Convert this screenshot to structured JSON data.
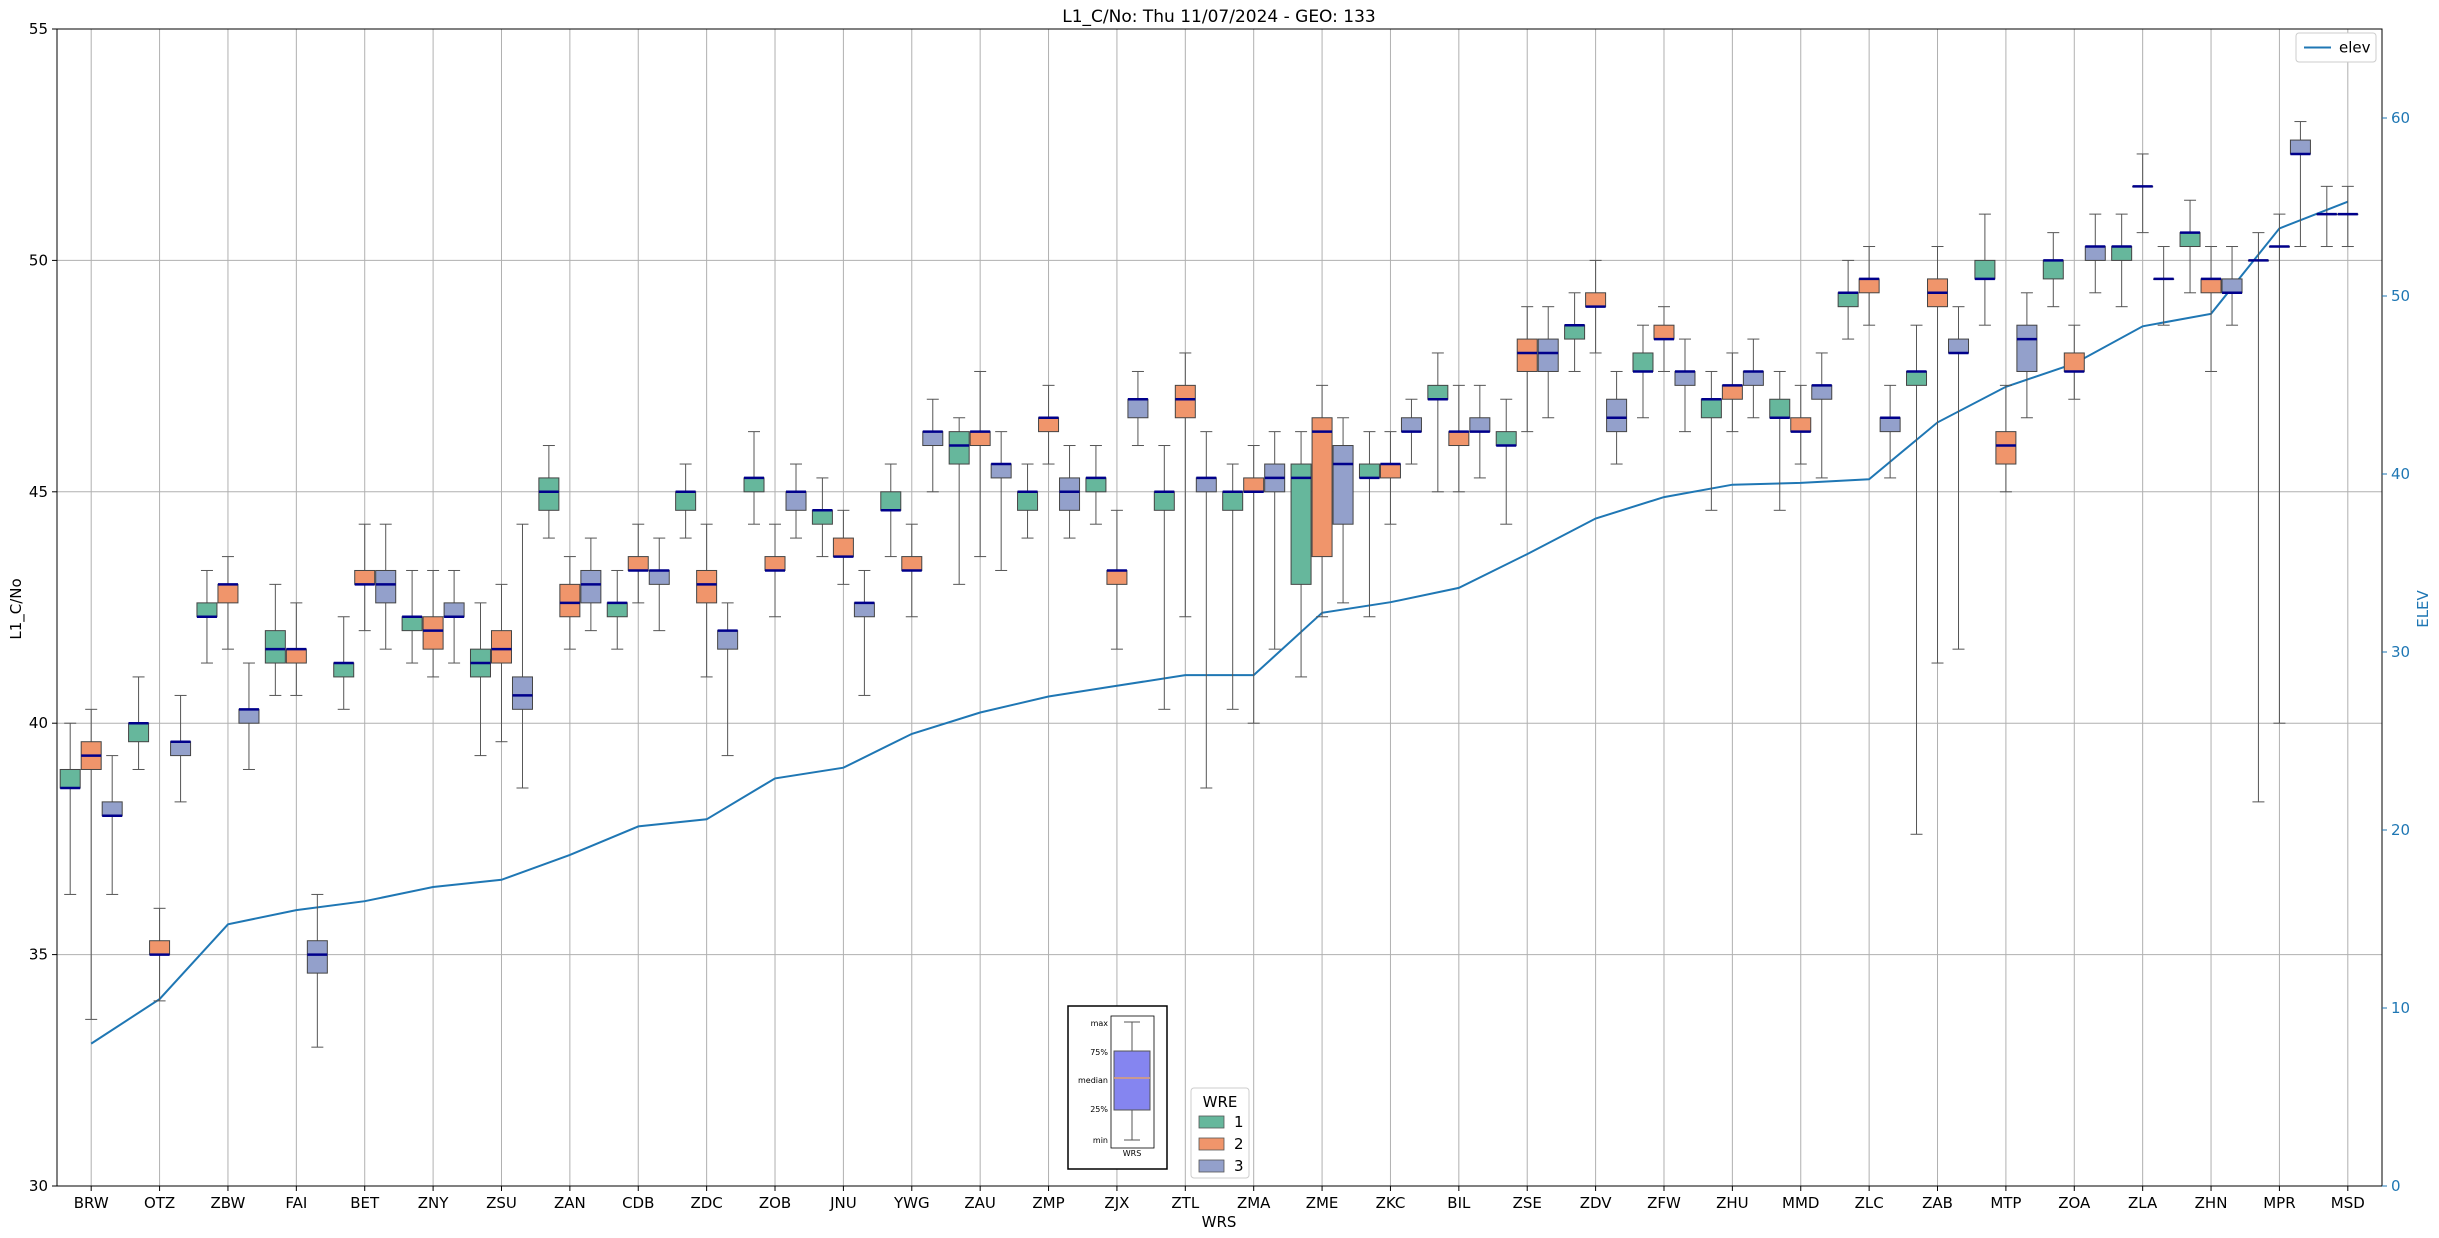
{
  "chart_data": {
    "type": "box+line",
    "title": "L1_C/No: Thu 11/07/2024 - GEO: 133",
    "xlabel": "WRS",
    "ylabel": "L1_C/No",
    "y2label": "ELEV",
    "ylim": [
      30,
      55
    ],
    "y2lim": [
      0,
      65
    ],
    "yticks": [
      30,
      35,
      40,
      45,
      50,
      55
    ],
    "y2ticks": [
      0,
      10,
      20,
      30,
      40,
      50,
      60
    ],
    "grid": true,
    "categories": [
      "BRW",
      "OTZ",
      "ZBW",
      "FAI",
      "BET",
      "ZNY",
      "ZSU",
      "ZAN",
      "CDB",
      "ZDC",
      "ZOB",
      "JNU",
      "YWG",
      "ZAU",
      "ZMP",
      "ZJX",
      "ZTL",
      "ZMA",
      "ZME",
      "ZKC",
      "BIL",
      "ZSE",
      "ZDV",
      "ZFW",
      "ZHU",
      "MMD",
      "ZLC",
      "ZAB",
      "MTP",
      "ZOA",
      "ZLA",
      "ZHN",
      "MPR",
      "MSD"
    ],
    "wre_legend": {
      "title": "WRE",
      "entries": [
        {
          "label": "1",
          "color": "#66b79c"
        },
        {
          "label": "2",
          "color": "#f0956b"
        },
        {
          "label": "3",
          "color": "#93a0cb"
        }
      ],
      "placement": "bottom-center"
    },
    "line_legend": {
      "label": "elev",
      "color": "#1f77b4",
      "placement": "top-right"
    },
    "median_color": "#00008b",
    "elev": [
      8,
      10.5,
      14.7,
      15.5,
      16,
      16.8,
      17.2,
      18.6,
      20.2,
      20.6,
      22.9,
      23.5,
      25.4,
      26.6,
      27.5,
      28.1,
      28.7,
      28.7,
      32.2,
      32.8,
      33.6,
      35.5,
      37.5,
      38.7,
      39.4,
      39.5,
      39.7,
      42.9,
      44.9,
      46.2,
      48.3,
      49,
      53.8,
      55.3
    ],
    "boxes": [
      {
        "cat": "BRW",
        "wre": 1,
        "min": 36.3,
        "q1": 38.6,
        "median": 38.6,
        "q3": 39.0,
        "max": 40.0
      },
      {
        "cat": "BRW",
        "wre": 2,
        "min": 33.6,
        "q1": 39.0,
        "median": 39.3,
        "q3": 39.6,
        "max": 40.3
      },
      {
        "cat": "BRW",
        "wre": 3,
        "min": 36.3,
        "q1": 38.0,
        "median": 38.0,
        "q3": 38.3,
        "max": 39.3
      },
      {
        "cat": "OTZ",
        "wre": 1,
        "min": 39.0,
        "q1": 39.6,
        "median": 40.0,
        "q3": 40.0,
        "max": 41.0
      },
      {
        "cat": "OTZ",
        "wre": 2,
        "min": 34.0,
        "q1": 35.0,
        "median": 35.0,
        "q3": 35.3,
        "max": 36.0
      },
      {
        "cat": "OTZ",
        "wre": 3,
        "min": 38.3,
        "q1": 39.3,
        "median": 39.6,
        "q3": 39.6,
        "max": 40.6
      },
      {
        "cat": "ZBW",
        "wre": 1,
        "min": 41.3,
        "q1": 42.3,
        "median": 42.3,
        "q3": 42.6,
        "max": 43.3
      },
      {
        "cat": "ZBW",
        "wre": 2,
        "min": 41.6,
        "q1": 42.6,
        "median": 43.0,
        "q3": 43.0,
        "max": 43.6
      },
      {
        "cat": "ZBW",
        "wre": 3,
        "min": 39.0,
        "q1": 40.0,
        "median": 40.3,
        "q3": 40.3,
        "max": 41.3
      },
      {
        "cat": "FAI",
        "wre": 1,
        "min": 40.6,
        "q1": 41.3,
        "median": 41.6,
        "q3": 42.0,
        "max": 43.0
      },
      {
        "cat": "FAI",
        "wre": 2,
        "min": 40.6,
        "q1": 41.3,
        "median": 41.6,
        "q3": 41.6,
        "max": 42.6
      },
      {
        "cat": "FAI",
        "wre": 3,
        "min": 33.0,
        "q1": 34.6,
        "median": 35.0,
        "q3": 35.3,
        "max": 36.3
      },
      {
        "cat": "BET",
        "wre": 1,
        "min": 40.3,
        "q1": 41.0,
        "median": 41.3,
        "q3": 41.3,
        "max": 42.3
      },
      {
        "cat": "BET",
        "wre": 2,
        "min": 42.0,
        "q1": 43.0,
        "median": 43.0,
        "q3": 43.3,
        "max": 44.3
      },
      {
        "cat": "BET",
        "wre": 3,
        "min": 41.6,
        "q1": 42.6,
        "median": 43.0,
        "q3": 43.3,
        "max": 44.3
      },
      {
        "cat": "ZNY",
        "wre": 1,
        "min": 41.3,
        "q1": 42.0,
        "median": 42.3,
        "q3": 42.3,
        "max": 43.3
      },
      {
        "cat": "ZNY",
        "wre": 2,
        "min": 41.0,
        "q1": 41.6,
        "median": 42.0,
        "q3": 42.3,
        "max": 43.3
      },
      {
        "cat": "ZNY",
        "wre": 3,
        "min": 41.3,
        "q1": 42.3,
        "median": 42.3,
        "q3": 42.6,
        "max": 43.3
      },
      {
        "cat": "ZSU",
        "wre": 1,
        "min": 39.3,
        "q1": 41.0,
        "median": 41.3,
        "q3": 41.6,
        "max": 42.6
      },
      {
        "cat": "ZSU",
        "wre": 2,
        "min": 39.6,
        "q1": 41.3,
        "median": 41.6,
        "q3": 42.0,
        "max": 43.0
      },
      {
        "cat": "ZSU",
        "wre": 3,
        "min": 38.6,
        "q1": 40.3,
        "median": 40.6,
        "q3": 41.0,
        "max": 44.3
      },
      {
        "cat": "ZAN",
        "wre": 1,
        "min": 44.0,
        "q1": 44.6,
        "median": 45.0,
        "q3": 45.3,
        "max": 46.0
      },
      {
        "cat": "ZAN",
        "wre": 2,
        "min": 41.6,
        "q1": 42.3,
        "median": 42.6,
        "q3": 43.0,
        "max": 43.6
      },
      {
        "cat": "ZAN",
        "wre": 3,
        "min": 42.0,
        "q1": 42.6,
        "median": 43.0,
        "q3": 43.3,
        "max": 44.0
      },
      {
        "cat": "CDB",
        "wre": 1,
        "min": 41.6,
        "q1": 42.3,
        "median": 42.6,
        "q3": 42.6,
        "max": 43.3
      },
      {
        "cat": "CDB",
        "wre": 2,
        "min": 42.6,
        "q1": 43.3,
        "median": 43.3,
        "q3": 43.6,
        "max": 44.3
      },
      {
        "cat": "CDB",
        "wre": 3,
        "min": 42.0,
        "q1": 43.0,
        "median": 43.3,
        "q3": 43.3,
        "max": 44.0
      },
      {
        "cat": "ZDC",
        "wre": 1,
        "min": 44.0,
        "q1": 44.6,
        "median": 45.0,
        "q3": 45.0,
        "max": 45.6
      },
      {
        "cat": "ZDC",
        "wre": 2,
        "min": 41.0,
        "q1": 42.6,
        "median": 43.0,
        "q3": 43.3,
        "max": 44.3
      },
      {
        "cat": "ZDC",
        "wre": 3,
        "min": 39.3,
        "q1": 41.6,
        "median": 42.0,
        "q3": 42.0,
        "max": 42.6
      },
      {
        "cat": "ZOB",
        "wre": 1,
        "min": 44.3,
        "q1": 45.0,
        "median": 45.3,
        "q3": 45.3,
        "max": 46.3
      },
      {
        "cat": "ZOB",
        "wre": 2,
        "min": 42.3,
        "q1": 43.3,
        "median": 43.3,
        "q3": 43.6,
        "max": 44.3
      },
      {
        "cat": "ZOB",
        "wre": 3,
        "min": 44.0,
        "q1": 44.6,
        "median": 45.0,
        "q3": 45.0,
        "max": 45.6
      },
      {
        "cat": "JNU",
        "wre": 1,
        "min": 43.6,
        "q1": 44.3,
        "median": 44.6,
        "q3": 44.6,
        "max": 45.3
      },
      {
        "cat": "JNU",
        "wre": 2,
        "min": 43.0,
        "q1": 43.6,
        "median": 43.6,
        "q3": 44.0,
        "max": 44.6
      },
      {
        "cat": "JNU",
        "wre": 3,
        "min": 40.6,
        "q1": 42.3,
        "median": 42.6,
        "q3": 42.6,
        "max": 43.3
      },
      {
        "cat": "YWG",
        "wre": 1,
        "min": 43.6,
        "q1": 44.6,
        "median": 44.6,
        "q3": 45.0,
        "max": 45.6
      },
      {
        "cat": "YWG",
        "wre": 2,
        "min": 42.3,
        "q1": 43.3,
        "median": 43.3,
        "q3": 43.6,
        "max": 44.3
      },
      {
        "cat": "YWG",
        "wre": 3,
        "min": 45.0,
        "q1": 46.0,
        "median": 46.3,
        "q3": 46.3,
        "max": 47.0
      },
      {
        "cat": "ZAU",
        "wre": 1,
        "min": 43.0,
        "q1": 45.6,
        "median": 46.0,
        "q3": 46.3,
        "max": 46.6
      },
      {
        "cat": "ZAU",
        "wre": 2,
        "min": 43.6,
        "q1": 46.0,
        "median": 46.3,
        "q3": 46.3,
        "max": 47.6
      },
      {
        "cat": "ZAU",
        "wre": 3,
        "min": 43.3,
        "q1": 45.3,
        "median": 45.6,
        "q3": 45.6,
        "max": 46.3
      },
      {
        "cat": "ZMP",
        "wre": 1,
        "min": 44.0,
        "q1": 44.6,
        "median": 45.0,
        "q3": 45.0,
        "max": 45.6
      },
      {
        "cat": "ZMP",
        "wre": 2,
        "min": 45.6,
        "q1": 46.3,
        "median": 46.6,
        "q3": 46.6,
        "max": 47.3
      },
      {
        "cat": "ZMP",
        "wre": 3,
        "min": 44.0,
        "q1": 44.6,
        "median": 45.0,
        "q3": 45.3,
        "max": 46.0
      },
      {
        "cat": "ZJX",
        "wre": 1,
        "min": 44.3,
        "q1": 45.0,
        "median": 45.3,
        "q3": 45.3,
        "max": 46.0
      },
      {
        "cat": "ZJX",
        "wre": 2,
        "min": 41.6,
        "q1": 43.0,
        "median": 43.3,
        "q3": 43.3,
        "max": 44.6
      },
      {
        "cat": "ZJX",
        "wre": 3,
        "min": 46.0,
        "q1": 46.6,
        "median": 47.0,
        "q3": 47.0,
        "max": 47.6
      },
      {
        "cat": "ZTL",
        "wre": 1,
        "min": 40.3,
        "q1": 44.6,
        "median": 45.0,
        "q3": 45.0,
        "max": 46.0
      },
      {
        "cat": "ZTL",
        "wre": 2,
        "min": 42.3,
        "q1": 46.6,
        "median": 47.0,
        "q3": 47.3,
        "max": 48.0
      },
      {
        "cat": "ZTL",
        "wre": 3,
        "min": 38.6,
        "q1": 45.0,
        "median": 45.3,
        "q3": 45.3,
        "max": 46.3
      },
      {
        "cat": "ZMA",
        "wre": 1,
        "min": 40.3,
        "q1": 44.6,
        "median": 45.0,
        "q3": 45.0,
        "max": 45.6
      },
      {
        "cat": "ZMA",
        "wre": 2,
        "min": 40.0,
        "q1": 45.0,
        "median": 45.0,
        "q3": 45.3,
        "max": 46.0
      },
      {
        "cat": "ZMA",
        "wre": 3,
        "min": 41.6,
        "q1": 45.0,
        "median": 45.3,
        "q3": 45.6,
        "max": 46.3
      },
      {
        "cat": "ZME",
        "wre": 1,
        "min": 41.0,
        "q1": 43.0,
        "median": 45.3,
        "q3": 45.6,
        "max": 46.3
      },
      {
        "cat": "ZME",
        "wre": 2,
        "min": 42.3,
        "q1": 43.6,
        "median": 46.3,
        "q3": 46.6,
        "max": 47.3
      },
      {
        "cat": "ZME",
        "wre": 3,
        "min": 42.6,
        "q1": 44.3,
        "median": 45.6,
        "q3": 46.0,
        "max": 46.6
      },
      {
        "cat": "ZKC",
        "wre": 1,
        "min": 42.3,
        "q1": 45.3,
        "median": 45.3,
        "q3": 45.6,
        "max": 46.3
      },
      {
        "cat": "ZKC",
        "wre": 2,
        "min": 44.3,
        "q1": 45.3,
        "median": 45.6,
        "q3": 45.6,
        "max": 46.3
      },
      {
        "cat": "ZKC",
        "wre": 3,
        "min": 45.6,
        "q1": 46.3,
        "median": 46.3,
        "q3": 46.6,
        "max": 47.0
      },
      {
        "cat": "BIL",
        "wre": 1,
        "min": 45.0,
        "q1": 47.0,
        "median": 47.0,
        "q3": 47.3,
        "max": 48.0
      },
      {
        "cat": "BIL",
        "wre": 2,
        "min": 45.0,
        "q1": 46.0,
        "median": 46.3,
        "q3": 46.3,
        "max": 47.3
      },
      {
        "cat": "BIL",
        "wre": 3,
        "min": 45.3,
        "q1": 46.3,
        "median": 46.3,
        "q3": 46.6,
        "max": 47.3
      },
      {
        "cat": "ZSE",
        "wre": 1,
        "min": 44.3,
        "q1": 46.0,
        "median": 46.0,
        "q3": 46.3,
        "max": 47.0
      },
      {
        "cat": "ZSE",
        "wre": 2,
        "min": 46.3,
        "q1": 47.6,
        "median": 48.0,
        "q3": 48.3,
        "max": 49.0
      },
      {
        "cat": "ZSE",
        "wre": 3,
        "min": 46.6,
        "q1": 47.6,
        "median": 48.0,
        "q3": 48.3,
        "max": 49.0
      },
      {
        "cat": "ZDV",
        "wre": 1,
        "min": 47.6,
        "q1": 48.3,
        "median": 48.6,
        "q3": 48.6,
        "max": 49.3
      },
      {
        "cat": "ZDV",
        "wre": 2,
        "min": 48.0,
        "q1": 49.0,
        "median": 49.0,
        "q3": 49.3,
        "max": 50.0
      },
      {
        "cat": "ZDV",
        "wre": 3,
        "min": 45.6,
        "q1": 46.3,
        "median": 46.6,
        "q3": 47.0,
        "max": 47.6
      },
      {
        "cat": "ZFW",
        "wre": 1,
        "min": 46.6,
        "q1": 47.6,
        "median": 47.6,
        "q3": 48.0,
        "max": 48.6
      },
      {
        "cat": "ZFW",
        "wre": 2,
        "min": 47.6,
        "q1": 48.3,
        "median": 48.3,
        "q3": 48.6,
        "max": 49.0
      },
      {
        "cat": "ZFW",
        "wre": 3,
        "min": 46.3,
        "q1": 47.3,
        "median": 47.6,
        "q3": 47.6,
        "max": 48.3
      },
      {
        "cat": "ZHU",
        "wre": 1,
        "min": 44.6,
        "q1": 46.6,
        "median": 47.0,
        "q3": 47.0,
        "max": 47.6
      },
      {
        "cat": "ZHU",
        "wre": 2,
        "min": 46.3,
        "q1": 47.0,
        "median": 47.3,
        "q3": 47.3,
        "max": 48.0
      },
      {
        "cat": "ZHU",
        "wre": 3,
        "min": 46.6,
        "q1": 47.3,
        "median": 47.6,
        "q3": 47.6,
        "max": 48.3
      },
      {
        "cat": "MMD",
        "wre": 1,
        "min": 44.6,
        "q1": 46.6,
        "median": 46.6,
        "q3": 47.0,
        "max": 47.6
      },
      {
        "cat": "MMD",
        "wre": 2,
        "min": 45.6,
        "q1": 46.3,
        "median": 46.3,
        "q3": 46.6,
        "max": 47.3
      },
      {
        "cat": "MMD",
        "wre": 3,
        "min": 45.3,
        "q1": 47.0,
        "median": 47.3,
        "q3": 47.3,
        "max": 48.0
      },
      {
        "cat": "ZLC",
        "wre": 1,
        "min": 48.3,
        "q1": 49.0,
        "median": 49.3,
        "q3": 49.3,
        "max": 50.0
      },
      {
        "cat": "ZLC",
        "wre": 2,
        "min": 48.6,
        "q1": 49.3,
        "median": 49.6,
        "q3": 49.6,
        "max": 50.3
      },
      {
        "cat": "ZLC",
        "wre": 3,
        "min": 45.3,
        "q1": 46.3,
        "median": 46.6,
        "q3": 46.6,
        "max": 47.3
      },
      {
        "cat": "ZAB",
        "wre": 1,
        "min": 37.6,
        "q1": 47.3,
        "median": 47.6,
        "q3": 47.6,
        "max": 48.6
      },
      {
        "cat": "ZAB",
        "wre": 2,
        "min": 41.3,
        "q1": 49.0,
        "median": 49.3,
        "q3": 49.6,
        "max": 50.3
      },
      {
        "cat": "ZAB",
        "wre": 3,
        "min": 41.6,
        "q1": 48.0,
        "median": 48.0,
        "q3": 48.3,
        "max": 49.0
      },
      {
        "cat": "MTP",
        "wre": 1,
        "min": 48.6,
        "q1": 49.6,
        "median": 49.6,
        "q3": 50.0,
        "max": 51.0
      },
      {
        "cat": "MTP",
        "wre": 2,
        "min": 45.0,
        "q1": 45.6,
        "median": 46.0,
        "q3": 46.3,
        "max": 47.3
      },
      {
        "cat": "MTP",
        "wre": 3,
        "min": 46.6,
        "q1": 47.6,
        "median": 48.3,
        "q3": 48.6,
        "max": 49.3
      },
      {
        "cat": "ZOA",
        "wre": 1,
        "min": 49.0,
        "q1": 49.6,
        "median": 50.0,
        "q3": 50.0,
        "max": 50.6
      },
      {
        "cat": "ZOA",
        "wre": 2,
        "min": 47.0,
        "q1": 47.6,
        "median": 47.6,
        "q3": 48.0,
        "max": 48.6
      },
      {
        "cat": "ZOA",
        "wre": 3,
        "min": 49.3,
        "q1": 50.0,
        "median": 50.3,
        "q3": 50.3,
        "max": 51.0
      },
      {
        "cat": "ZLA",
        "wre": 1,
        "min": 49.0,
        "q1": 50.0,
        "median": 50.3,
        "q3": 50.3,
        "max": 51.0
      },
      {
        "cat": "ZLA",
        "wre": 2,
        "min": 50.6,
        "q1": 51.6,
        "median": 51.6,
        "q3": 51.6,
        "max": 52.3
      },
      {
        "cat": "ZLA",
        "wre": 3,
        "min": 48.6,
        "q1": 49.6,
        "median": 49.6,
        "q3": 49.6,
        "max": 50.3
      },
      {
        "cat": "ZHN",
        "wre": 1,
        "min": 49.3,
        "q1": 50.3,
        "median": 50.6,
        "q3": 50.6,
        "max": 51.3
      },
      {
        "cat": "ZHN",
        "wre": 2,
        "min": 47.6,
        "q1": 49.3,
        "median": 49.6,
        "q3": 49.6,
        "max": 50.3
      },
      {
        "cat": "ZHN",
        "wre": 3,
        "min": 48.6,
        "q1": 49.3,
        "median": 49.3,
        "q3": 49.6,
        "max": 50.3
      },
      {
        "cat": "MPR",
        "wre": 1,
        "min": 38.3,
        "q1": 50.0,
        "median": 50.0,
        "q3": 50.0,
        "max": 50.6
      },
      {
        "cat": "MPR",
        "wre": 2,
        "min": 40.0,
        "q1": 50.3,
        "median": 50.3,
        "q3": 50.3,
        "max": 51.0
      },
      {
        "cat": "MPR",
        "wre": 3,
        "min": 50.3,
        "q1": 52.3,
        "median": 52.3,
        "q3": 52.6,
        "max": 53.0
      },
      {
        "cat": "MSD",
        "wre": 1,
        "min": 50.3,
        "q1": 51.0,
        "median": 51.0,
        "q3": 51.0,
        "max": 51.6
      },
      {
        "cat": "MSD",
        "wre": 2,
        "min": 50.3,
        "q1": 51.0,
        "median": 51.0,
        "q3": 51.0,
        "max": 51.6
      }
    ]
  },
  "inset_key": {
    "labels": [
      "max",
      "75%",
      "median",
      "25%",
      "min"
    ],
    "box_label": "WRS",
    "box_color": "#8585f0"
  }
}
